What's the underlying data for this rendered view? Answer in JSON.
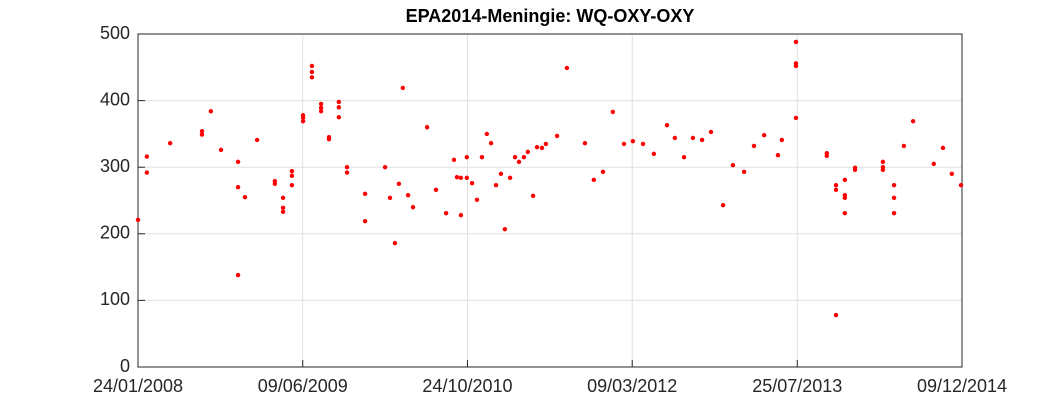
{
  "chart_data": {
    "type": "scatter",
    "title": "EPA2014-Meningie: WQ-OXY-OXY",
    "color": "#ff0000",
    "grid": true,
    "xlim": [
      "24/01/2008",
      "09/12/2014"
    ],
    "xticks": [
      "24/01/2008",
      "09/06/2009",
      "24/10/2010",
      "09/03/2012",
      "25/07/2013",
      "09/12/2014"
    ],
    "ylim": [
      0,
      500
    ],
    "yticks": [
      0,
      100,
      200,
      300,
      400,
      500
    ],
    "x": [
      "24/01/2008",
      "20/02/2008",
      "20/02/2008",
      "01/05/2008",
      "06/08/2008",
      "06/08/2008",
      "02/09/2008",
      "03/10/2008",
      "24/11/2008",
      "24/11/2008",
      "24/11/2008",
      "15/12/2008",
      "21/01/2009",
      "16/03/2009",
      "16/03/2009",
      "10/04/2009",
      "10/04/2009",
      "10/04/2009",
      "07/05/2009",
      "07/05/2009",
      "07/05/2009",
      "10/06/2009",
      "10/06/2009",
      "10/06/2009",
      "07/07/2009",
      "07/07/2009",
      "07/07/2009",
      "04/08/2009",
      "04/08/2009",
      "04/08/2009",
      "28/08/2009",
      "28/08/2009",
      "27/09/2009",
      "27/09/2009",
      "27/09/2009",
      "22/10/2009",
      "22/10/2009",
      "16/12/2009",
      "16/12/2009",
      "15/02/2010",
      "02/03/2010",
      "17/03/2010",
      "29/03/2010",
      "10/04/2010",
      "26/04/2010",
      "11/05/2010",
      "23/06/2010",
      "20/07/2010",
      "20/08/2010",
      "13/09/2010",
      "22/09/2010",
      "04/10/2010",
      "04/10/2010",
      "22/10/2010",
      "22/10/2010",
      "07/11/2010",
      "22/11/2010",
      "07/12/2010",
      "22/12/2010",
      "04/01/2011",
      "19/01/2011",
      "03/02/2011",
      "15/02/2011",
      "03/03/2011",
      "18/03/2011",
      "30/03/2011",
      "14/04/2011",
      "26/04/2011",
      "12/05/2011",
      "24/05/2011",
      "08/06/2011",
      "20/06/2011",
      "24/07/2011",
      "23/08/2011",
      "17/10/2011",
      "13/11/2011",
      "11/12/2011",
      "10/01/2012",
      "13/02/2012",
      "11/03/2012",
      "11/04/2012",
      "14/05/2012",
      "23/06/2012",
      "17/07/2012",
      "14/08/2012",
      "10/09/2012",
      "08/10/2012",
      "04/11/2012",
      "11/12/2012",
      "10/01/2013",
      "13/02/2013",
      "15/03/2013",
      "15/04/2013",
      "27/05/2013",
      "08/06/2013",
      "21/07/2013",
      "21/07/2013",
      "21/07/2013",
      "21/07/2013",
      "23/10/2013",
      "23/10/2013",
      "20/11/2013",
      "20/11/2013",
      "20/11/2013",
      "17/12/2013",
      "17/12/2013",
      "17/12/2013",
      "17/12/2013",
      "17/01/2014",
      "17/01/2014",
      "12/04/2014",
      "12/04/2014",
      "12/04/2014",
      "16/05/2014",
      "16/05/2014",
      "16/05/2014",
      "15/06/2014",
      "13/07/2014",
      "14/09/2014",
      "12/10/2014",
      "08/11/2014",
      "06/12/2014"
    ],
    "values": [
      221,
      316,
      292,
      336,
      354,
      349,
      384,
      326,
      308,
      270,
      138,
      255,
      341,
      279,
      275,
      254,
      239,
      233,
      294,
      287,
      273,
      378,
      374,
      369,
      452,
      443,
      435,
      395,
      389,
      384,
      345,
      342,
      398,
      390,
      375,
      300,
      292,
      260,
      219,
      300,
      254,
      186,
      275,
      419,
      258,
      240,
      360,
      266,
      231,
      311,
      285,
      284,
      228,
      315,
      284,
      276,
      251,
      315,
      350,
      336,
      273,
      290,
      207,
      284,
      315,
      308,
      315,
      323,
      257,
      330,
      329,
      335,
      347,
      449,
      336,
      281,
      293,
      383,
      335,
      339,
      335,
      320,
      363,
      344,
      315,
      344,
      341,
      353,
      243,
      303,
      293,
      332,
      348,
      318,
      341,
      488,
      456,
      452,
      374,
      321,
      317,
      273,
      266,
      78,
      281,
      258,
      254,
      231,
      299,
      296,
      308,
      300,
      296,
      273,
      254,
      231,
      332,
      369,
      305,
      329,
      290,
      273
    ]
  }
}
